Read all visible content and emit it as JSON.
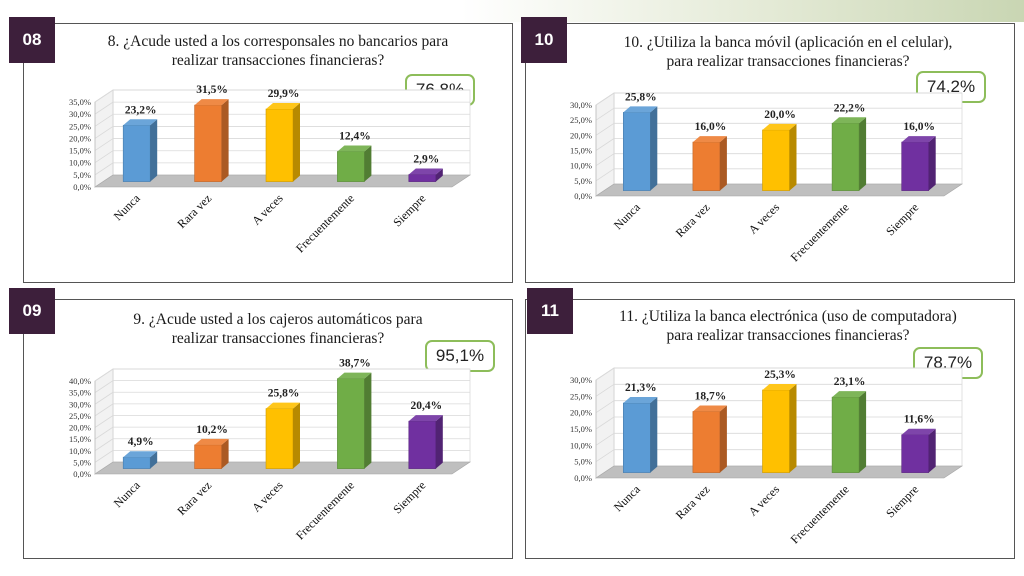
{
  "panels": [
    {
      "number": "08",
      "title_line1": "8. ¿Acude usted a los corresponsales no bancarios para",
      "title_line2": "realizar transacciones financieras?",
      "total": "76,8%"
    },
    {
      "number": "10",
      "title_line1": "10. ¿Utiliza la banca móvil (aplicación en el celular),",
      "title_line2": "para realizar transacciones financieras?",
      "total": "74,2%"
    },
    {
      "number": "09",
      "title_line1": "9. ¿Acude usted a los cajeros automáticos para",
      "title_line2": "realizar transacciones financieras?",
      "total": "95,1%"
    },
    {
      "number": "11",
      "title_line1": "11. ¿Utiliza la banca electrónica (uso de computadora)",
      "title_line2": "para realizar transacciones financieras?",
      "total": "78,7%"
    }
  ],
  "colors": [
    "#5b9bd5",
    "#ed7d31",
    "#ffc000",
    "#70ad47",
    "#7030a0"
  ],
  "chart_data": [
    {
      "type": "bar",
      "title": "8. ¿Acude usted a los corresponsales no bancarios para realizar transacciones financieras?",
      "categories": [
        "Nunca",
        "Rara vez",
        "A veces",
        "Frecuentemente",
        "Siempre"
      ],
      "values": [
        23.2,
        31.5,
        29.9,
        12.4,
        2.9
      ],
      "value_labels": [
        "23,2%",
        "31,5%",
        "29,9%",
        "12,4%",
        "2,9%"
      ],
      "yticks": [
        "0,0%",
        "5,0%",
        "10,0%",
        "15,0%",
        "20,0%",
        "25,0%",
        "30,0%",
        "35,0%"
      ],
      "ylim": [
        0,
        35
      ],
      "grid": true,
      "legend": "none"
    },
    {
      "type": "bar",
      "title": "10. ¿Utiliza la banca móvil (aplicación en el celular), para realizar transacciones financieras?",
      "categories": [
        "Nunca",
        "Rara vez",
        "A veces",
        "Frecuentemente",
        "Siempre"
      ],
      "values": [
        25.8,
        16.0,
        20.0,
        22.2,
        16.0
      ],
      "value_labels": [
        "25,8%",
        "16,0%",
        "20,0%",
        "22,2%",
        "16,0%"
      ],
      "yticks": [
        "0,0%",
        "5,0%",
        "10,0%",
        "15,0%",
        "20,0%",
        "25,0%",
        "30,0%"
      ],
      "ylim": [
        0,
        30
      ],
      "grid": true,
      "legend": "none"
    },
    {
      "type": "bar",
      "title": "9. ¿Acude usted a los cajeros automáticos para realizar transacciones financieras?",
      "categories": [
        "Nunca",
        "Rara vez",
        "A veces",
        "Frecuentemente",
        "Siempre"
      ],
      "values": [
        4.9,
        10.2,
        25.8,
        38.7,
        20.4
      ],
      "value_labels": [
        "4,9%",
        "10,2%",
        "25,8%",
        "38,7%",
        "20,4%"
      ],
      "yticks": [
        "0,0%",
        "5,0%",
        "10,0%",
        "15,0%",
        "20,0%",
        "25,0%",
        "30,0%",
        "35,0%",
        "40,0%"
      ],
      "ylim": [
        0,
        40
      ],
      "grid": true,
      "legend": "none"
    },
    {
      "type": "bar",
      "title": "11. ¿Utiliza la banca electrónica (uso de computadora) para realizar transacciones financieras?",
      "categories": [
        "Nunca",
        "Rara vez",
        "A veces",
        "Frecuentemente",
        "Siempre"
      ],
      "values": [
        21.3,
        18.7,
        25.3,
        23.1,
        11.6
      ],
      "value_labels": [
        "21,3%",
        "18,7%",
        "25,3%",
        "23,1%",
        "11,6%"
      ],
      "yticks": [
        "0,0%",
        "5,0%",
        "10,0%",
        "15,0%",
        "20,0%",
        "25,0%",
        "30,0%"
      ],
      "ylim": [
        0,
        30
      ],
      "grid": true,
      "legend": "none"
    }
  ]
}
